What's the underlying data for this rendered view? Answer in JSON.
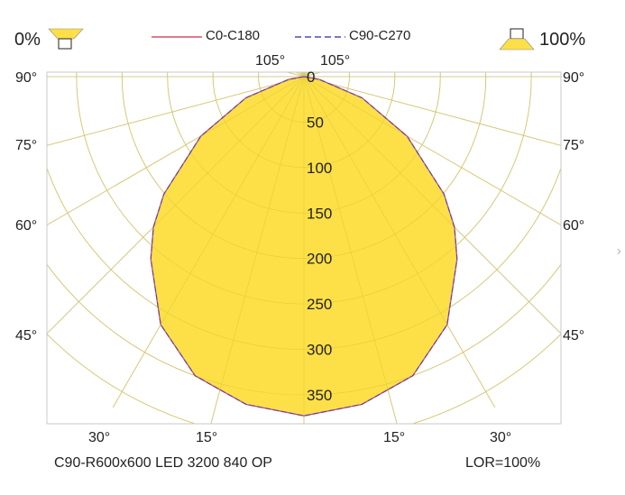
{
  "header": {
    "left_percent": "0%",
    "right_percent": "100%",
    "legend": [
      {
        "label": "C0-C180",
        "color": "#d2506a",
        "dash": "solid"
      },
      {
        "label": "C90-C270",
        "color": "#4b4bb0",
        "dash": "dashed"
      }
    ]
  },
  "footer": {
    "product": "C90-R600x600 LED 3200 840 OP",
    "lor": "LOR=100%"
  },
  "colors": {
    "fill": "#fde047",
    "grid": "#cccccc",
    "c0": "#d2506a",
    "c90": "#4b4bb0"
  },
  "chart_data": {
    "type": "polar",
    "radial_ticks": [
      "0",
      "50",
      "100",
      "150",
      "200",
      "250",
      "300",
      "350"
    ],
    "radial_values": [
      0,
      50,
      100,
      150,
      200,
      250,
      300,
      350
    ],
    "top_angle_labels": [
      "105°",
      "105°"
    ],
    "side_angle_labels": [
      "90°",
      "75°",
      "60°",
      "45°"
    ],
    "bottom_angle_labels": [
      "30°",
      "15°",
      "15°",
      "30°"
    ],
    "series": [
      {
        "name": "C0-C180",
        "angles": [
          0,
          10,
          20,
          30,
          40,
          45,
          50,
          60,
          70,
          80,
          90
        ],
        "values": [
          373,
          366,
          350,
          315,
          262,
          234,
          201,
          131,
          68,
          17,
          0
        ]
      },
      {
        "name": "C90-C270",
        "angles": [
          0,
          10,
          20,
          30,
          40,
          45,
          50,
          60,
          70,
          80,
          90
        ],
        "values": [
          373,
          366,
          350,
          315,
          262,
          234,
          201,
          131,
          68,
          17,
          0
        ]
      }
    ]
  }
}
